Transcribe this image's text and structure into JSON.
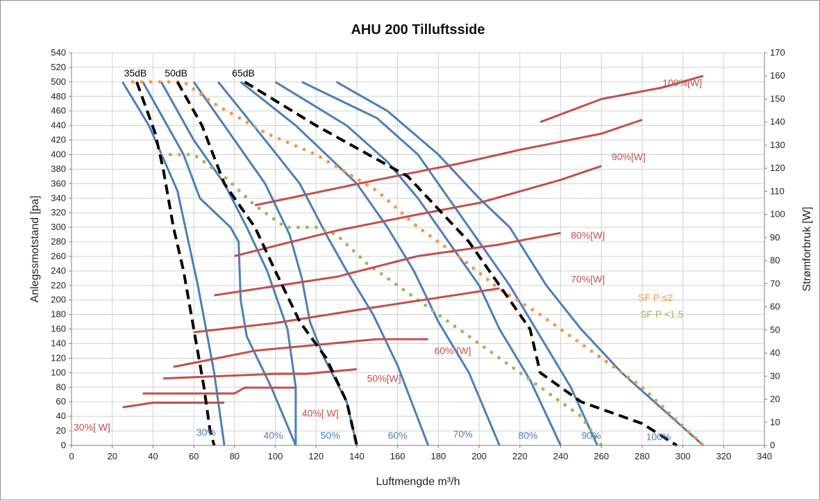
{
  "chart_data": {
    "type": "line",
    "title": "AHU 200 Tilluftsside",
    "xlabel": "Luftmengde m³/h",
    "ylabel": "Anlegssmotstand [pa]",
    "y2label": "Strømforbruk [W]",
    "xlim": [
      0,
      340
    ],
    "ylim": [
      0,
      540
    ],
    "y2lim": [
      0,
      170
    ],
    "x_ticks": [
      0,
      20,
      40,
      60,
      80,
      100,
      120,
      140,
      160,
      180,
      200,
      220,
      240,
      260,
      280,
      300,
      320,
      340
    ],
    "y_ticks": [
      0,
      20,
      40,
      60,
      80,
      100,
      120,
      140,
      160,
      180,
      200,
      220,
      240,
      260,
      280,
      300,
      320,
      340,
      360,
      380,
      400,
      420,
      440,
      460,
      480,
      500,
      520,
      540
    ],
    "y2_ticks": [
      0,
      10,
      20,
      30,
      40,
      50,
      60,
      70,
      80,
      90,
      100,
      110,
      120,
      130,
      140,
      150,
      160,
      170
    ],
    "grid": true,
    "colors": {
      "fan_curve": "#4a7ebb",
      "noise_curve": "#000000",
      "power_curve": "#c0504d",
      "sfp2": "#f79646",
      "sfp15": "#9bbb59"
    },
    "fan_curves": [
      {
        "label": "30%",
        "points": [
          [
            25,
            500
          ],
          [
            38,
            440
          ],
          [
            52,
            350
          ],
          [
            62,
            220
          ],
          [
            70,
            100
          ],
          [
            75,
            0
          ]
        ]
      },
      {
        "label": "",
        "points": [
          [
            35,
            500
          ],
          [
            55,
            400
          ],
          [
            63,
            340
          ],
          [
            78,
            300
          ],
          [
            82,
            280
          ],
          [
            83,
            200
          ],
          [
            86,
            150
          ],
          [
            98,
            80
          ],
          [
            110,
            0
          ]
        ]
      },
      {
        "label": "40%",
        "points": [
          [
            44,
            500
          ],
          [
            60,
            420
          ],
          [
            75,
            360
          ],
          [
            86,
            300
          ],
          [
            96,
            240
          ],
          [
            106,
            160
          ],
          [
            110,
            80
          ],
          [
            110,
            0
          ]
        ]
      },
      {
        "label": "50%",
        "points": [
          [
            60,
            500
          ],
          [
            80,
            420
          ],
          [
            95,
            360
          ],
          [
            107,
            290
          ],
          [
            113,
            230
          ],
          [
            117,
            170
          ],
          [
            124,
            120
          ],
          [
            135,
            60
          ],
          [
            140,
            0
          ]
        ]
      },
      {
        "label": "60%",
        "points": [
          [
            72,
            500
          ],
          [
            95,
            420
          ],
          [
            112,
            360
          ],
          [
            125,
            290
          ],
          [
            135,
            240
          ],
          [
            148,
            180
          ],
          [
            160,
            110
          ],
          [
            175,
            0
          ]
        ]
      },
      {
        "label": "70%",
        "points": [
          [
            83,
            500
          ],
          [
            110,
            440
          ],
          [
            140,
            360
          ],
          [
            155,
            300
          ],
          [
            168,
            240
          ],
          [
            180,
            170
          ],
          [
            195,
            100
          ],
          [
            210,
            0
          ]
        ]
      },
      {
        "label": "80%",
        "points": [
          [
            100,
            500
          ],
          [
            135,
            440
          ],
          [
            155,
            390
          ],
          [
            170,
            340
          ],
          [
            185,
            280
          ],
          [
            200,
            220
          ],
          [
            210,
            160
          ],
          [
            225,
            90
          ],
          [
            240,
            0
          ]
        ]
      },
      {
        "label": "90%",
        "points": [
          [
            113,
            500
          ],
          [
            150,
            450
          ],
          [
            170,
            400
          ],
          [
            185,
            340
          ],
          [
            195,
            300
          ],
          [
            215,
            220
          ],
          [
            230,
            150
          ],
          [
            245,
            80
          ],
          [
            258,
            0
          ]
        ]
      },
      {
        "label": "100%",
        "points": [
          [
            130,
            500
          ],
          [
            155,
            460
          ],
          [
            180,
            400
          ],
          [
            200,
            340
          ],
          [
            215,
            300
          ],
          [
            233,
            220
          ],
          [
            250,
            160
          ],
          [
            270,
            100
          ],
          [
            290,
            50
          ],
          [
            310,
            0
          ]
        ]
      }
    ],
    "noise_curves": [
      {
        "label": "35dB",
        "points": [
          [
            32,
            500
          ],
          [
            41,
            430
          ],
          [
            45,
            380
          ],
          [
            50,
            300
          ],
          [
            55,
            240
          ],
          [
            60,
            160
          ],
          [
            65,
            80
          ],
          [
            68,
            20
          ],
          [
            70,
            0
          ]
        ]
      },
      {
        "label": "50dB",
        "points": [
          [
            52,
            500
          ],
          [
            64,
            440
          ],
          [
            75,
            360
          ],
          [
            90,
            300
          ],
          [
            100,
            240
          ],
          [
            112,
            170
          ],
          [
            125,
            120
          ],
          [
            135,
            60
          ],
          [
            140,
            0
          ]
        ]
      },
      {
        "label": "65dB",
        "points": [
          [
            85,
            500
          ],
          [
            120,
            440
          ],
          [
            165,
            370
          ],
          [
            195,
            280
          ],
          [
            210,
            220
          ],
          [
            225,
            160
          ],
          [
            230,
            100
          ],
          [
            250,
            60
          ],
          [
            280,
            30
          ],
          [
            297,
            0
          ]
        ]
      }
    ],
    "power_curves": [
      {
        "label": "30%[ W]",
        "points": [
          [
            25,
            16.5
          ],
          [
            40,
            18.5
          ],
          [
            60,
            18.5
          ],
          [
            75,
            18.5
          ]
        ]
      },
      {
        "label": "40%[ W]",
        "points": [
          [
            35,
            22.5
          ],
          [
            80,
            22.5
          ],
          [
            85,
            25
          ],
          [
            110,
            25
          ]
        ]
      },
      {
        "label": "50%[W]",
        "points": [
          [
            45,
            29
          ],
          [
            100,
            31
          ],
          [
            115,
            31
          ],
          [
            140,
            33
          ]
        ]
      },
      {
        "label": "60% [W]",
        "points": [
          [
            50,
            34
          ],
          [
            90,
            41
          ],
          [
            150,
            46
          ],
          [
            175,
            46
          ]
        ]
      },
      {
        "label": "",
        "points": [
          [
            60,
            49
          ],
          [
            100,
            53
          ],
          [
            150,
            60
          ],
          [
            210,
            68
          ]
        ]
      },
      {
        "label": "70%[W]",
        "points": [
          [
            70,
            65
          ],
          [
            130,
            73
          ],
          [
            170,
            82
          ],
          [
            210,
            87
          ],
          [
            240,
            92
          ]
        ]
      },
      {
        "label": "80%[W]",
        "points": [
          [
            80,
            82
          ],
          [
            130,
            93
          ],
          [
            170,
            100
          ],
          [
            200,
            105
          ],
          [
            240,
            115
          ],
          [
            260,
            121
          ]
        ]
      },
      {
        "label": "90%[W]",
        "points": [
          [
            90,
            104
          ],
          [
            150,
            115
          ],
          [
            190,
            122
          ],
          [
            220,
            128
          ],
          [
            260,
            135
          ],
          [
            280,
            141
          ]
        ]
      },
      {
        "label": "100%[W]",
        "points": [
          [
            230,
            140
          ],
          [
            260,
            150
          ],
          [
            290,
            155
          ],
          [
            310,
            160
          ]
        ]
      }
    ],
    "sfp_curves": [
      {
        "label": "SF P ≤2",
        "color_key": "sfp2",
        "points": [
          [
            30,
            500
          ],
          [
            55,
            500
          ],
          [
            70,
            470
          ],
          [
            95,
            430
          ],
          [
            120,
            400
          ],
          [
            150,
            350
          ],
          [
            170,
            300
          ],
          [
            190,
            260
          ],
          [
            210,
            215
          ],
          [
            230,
            180
          ],
          [
            250,
            140
          ],
          [
            280,
            80
          ],
          [
            310,
            0
          ]
        ]
      },
      {
        "label": "SF P <1,5",
        "color_key": "sfp15",
        "points": [
          [
            44,
            400
          ],
          [
            60,
            400
          ],
          [
            75,
            370
          ],
          [
            90,
            330
          ],
          [
            105,
            300
          ],
          [
            120,
            300
          ],
          [
            130,
            290
          ],
          [
            145,
            250
          ],
          [
            165,
            210
          ],
          [
            190,
            160
          ],
          [
            215,
            110
          ],
          [
            235,
            70
          ],
          [
            250,
            40
          ],
          [
            260,
            0
          ]
        ]
      }
    ]
  }
}
